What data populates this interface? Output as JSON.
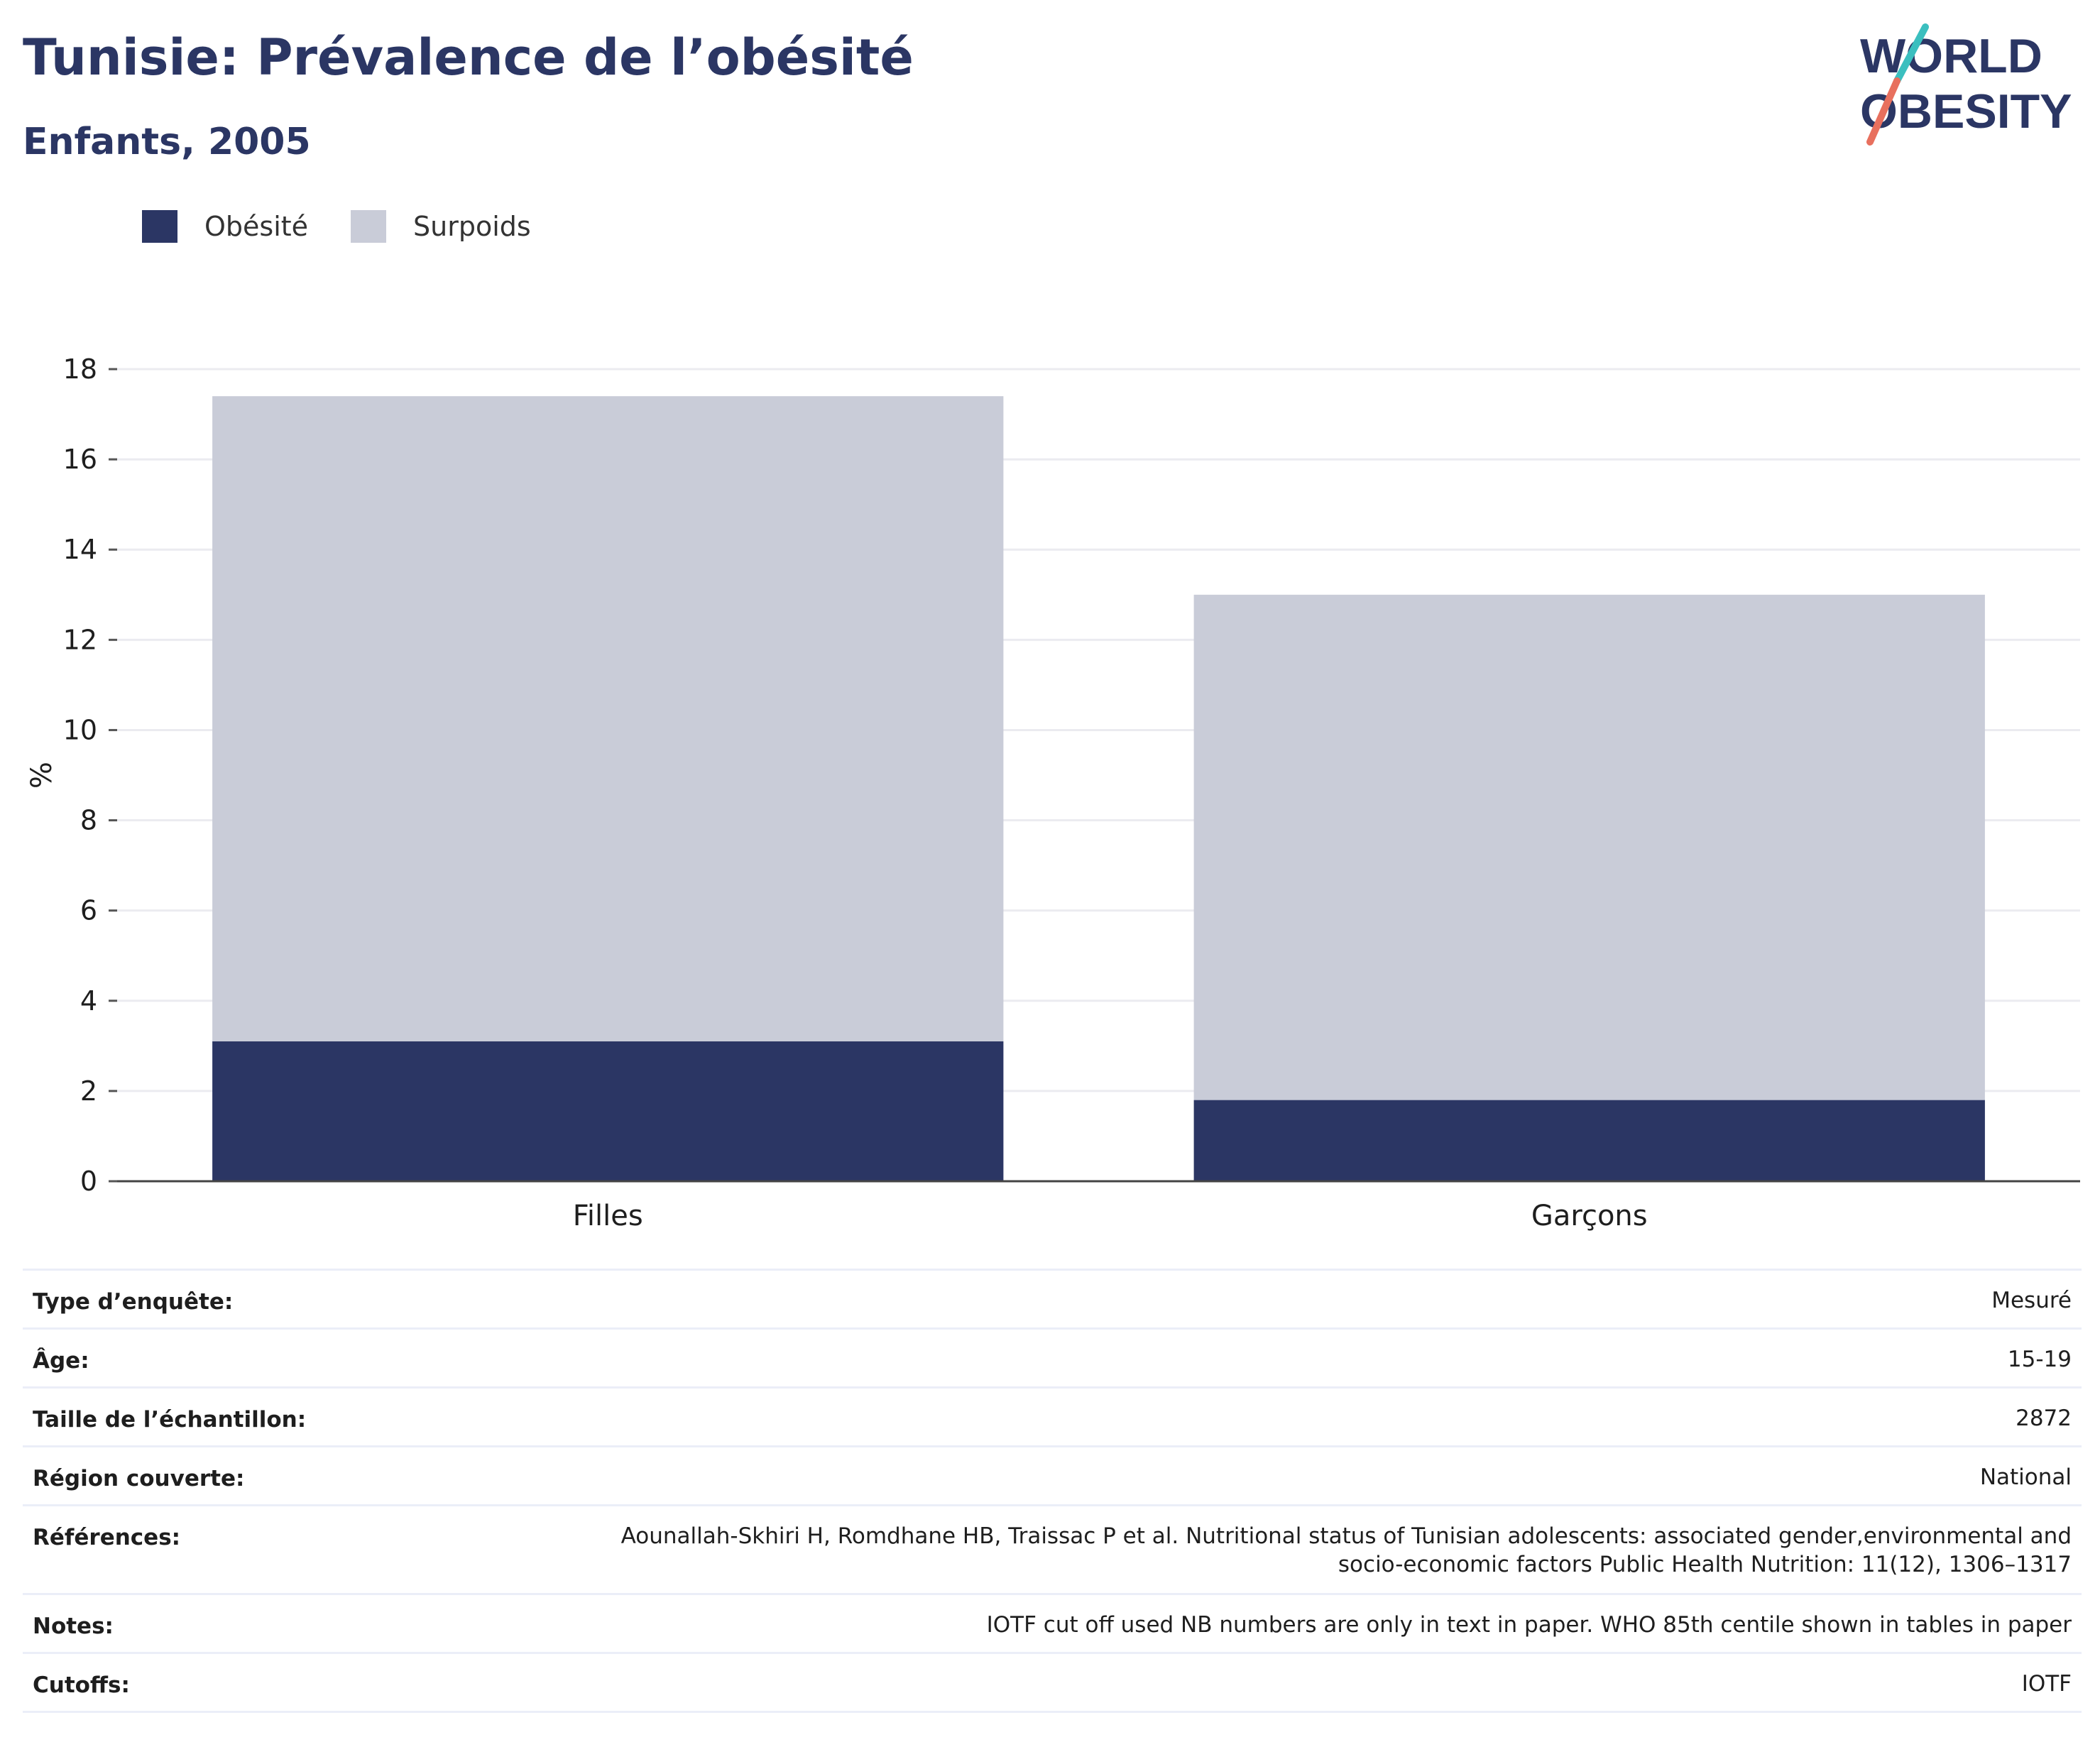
{
  "header": {
    "title": "Tunisie: Prévalence de l’obésité",
    "subtitle": "Enfants, 2005"
  },
  "logo": {
    "line1": "WORLD",
    "line2": "OBESITY"
  },
  "legend": [
    {
      "label": "Obésité",
      "color": "#2b3664"
    },
    {
      "label": "Surpoids",
      "color": "#c9ccd8"
    }
  ],
  "chart_data": {
    "type": "bar",
    "stacked": true,
    "categories": [
      "Filles",
      "Garçons"
    ],
    "series": [
      {
        "name": "Obésité",
        "color": "#2b3664",
        "values": [
          3.1,
          1.8
        ]
      },
      {
        "name": "Surpoids",
        "color": "#c9ccd8",
        "values": [
          14.3,
          11.2
        ]
      }
    ],
    "ylabel": "%",
    "ylim": [
      0,
      18
    ],
    "yticks": [
      0,
      2,
      4,
      6,
      8,
      10,
      12,
      14,
      16,
      18
    ],
    "grid": true,
    "legend_position": "top-left"
  },
  "info_table": [
    {
      "label": "Type d’enquête:",
      "value": "Mesuré"
    },
    {
      "label": "Âge:",
      "value": "15-19"
    },
    {
      "label": "Taille de l’échantillon:",
      "value": "2872"
    },
    {
      "label": "Région couverte:",
      "value": "National"
    },
    {
      "label": "Références:",
      "value_lines": [
        "Aounallah-Skhiri H, Romdhane HB, Traissac P et al. Nutritional status of Tunisian adolescents: associated gender,environmental and",
        "socio-economic factors Public Health Nutrition: 11(12), 1306–1317"
      ]
    },
    {
      "label": "Notes:",
      "value": "IOTF cut off used NB numbers are only in text in paper. WHO 85th centile shown in tables in paper"
    },
    {
      "label": "Cutoffs:",
      "value": "IOTF"
    }
  ]
}
